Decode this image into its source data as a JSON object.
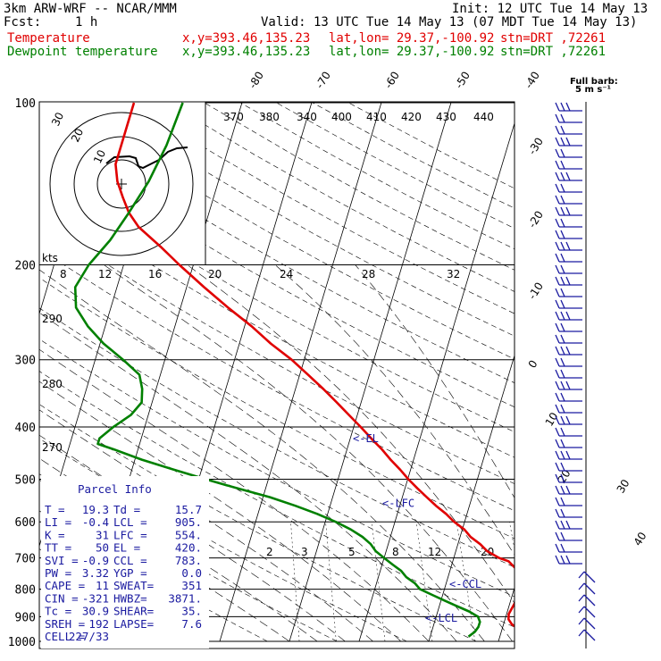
{
  "header": {
    "model": "3km ARW-WRF -- NCAR/MMM",
    "init": "Init: 12 UTC Tue 14 May 13",
    "fcst_label": "Fcst:",
    "fcst_value": "1 h",
    "valid": "Valid: 13 UTC Tue 14 May 13 (07 MDT Tue 14 May 13)",
    "temperature_label": "Temperature",
    "dewpoint_label": "Dewpoint temperature",
    "xy": "x,y=393.46,135.23",
    "latlon": "lat,lon= 29.37,-100.92",
    "stn": "stn=DRT ,72261"
  },
  "colors": {
    "temperature": "#e00000",
    "dewpoint": "#008000",
    "barbs": "#1a1aa0",
    "panel_text": "#1a1aa0",
    "axes": "#000000"
  },
  "wind_key": {
    "line1": "Full barb:",
    "line2": "5 m s⁻¹"
  },
  "hodograph": {
    "units": "kts",
    "ring_labels": [
      "10",
      "20",
      "30"
    ],
    "speed_axis": [
      "8",
      "12",
      "16",
      "20",
      "24",
      "28",
      "32"
    ]
  },
  "chart_data": {
    "type": "line",
    "chart_kind": "skew-T log-p sounding",
    "y_axis": "pressure (hPa)",
    "y_log_scale": true,
    "ylim": [
      1000,
      100
    ],
    "pressure_levels": [
      "100",
      "200",
      "300",
      "400",
      "500",
      "600",
      "700",
      "800",
      "900",
      "1000"
    ],
    "isotherm_labels": [
      "-80",
      "-70",
      "-60",
      "-50",
      "-40",
      "-30",
      "-20",
      "-10",
      "0",
      "10",
      "20",
      "30",
      "40"
    ],
    "theta_labels": [
      "370",
      "380",
      "340",
      "400",
      "410",
      "420",
      "430",
      "440"
    ],
    "theta_left_labels": [
      "290",
      "280",
      "270"
    ],
    "mixing_ratio_labels": [
      "2",
      "3",
      "5",
      "8",
      "12",
      "20"
    ],
    "series": [
      {
        "name": "Temperature",
        "color": "#e00000",
        "points": [
          [
            1000,
            24
          ],
          [
            980,
            23.5
          ],
          [
            950,
            22.5
          ],
          [
            930,
            21.2
          ],
          [
            910,
            20.5
          ],
          [
            890,
            20.3
          ],
          [
            870,
            20.5
          ],
          [
            850,
            20.7
          ],
          [
            830,
            20.8
          ],
          [
            810,
            20.5
          ],
          [
            790,
            20.8
          ],
          [
            770,
            21.0
          ],
          [
            750,
            20.3
          ],
          [
            730,
            19.2
          ],
          [
            710,
            18.0
          ],
          [
            700,
            16.5
          ],
          [
            680,
            14.5
          ],
          [
            660,
            13.2
          ],
          [
            640,
            11.5
          ],
          [
            620,
            10.3
          ],
          [
            600,
            8.5
          ],
          [
            580,
            7.0
          ],
          [
            560,
            5.2
          ],
          [
            540,
            3.5
          ],
          [
            520,
            1.8
          ],
          [
            500,
            0.1
          ],
          [
            480,
            -1.5
          ],
          [
            460,
            -3.3
          ],
          [
            440,
            -5.0
          ],
          [
            420,
            -7.0
          ],
          [
            400,
            -9.0
          ],
          [
            380,
            -11.2
          ],
          [
            360,
            -13.5
          ],
          [
            340,
            -16.0
          ],
          [
            320,
            -18.8
          ],
          [
            300,
            -21.8
          ],
          [
            280,
            -25.5
          ],
          [
            260,
            -29.0
          ],
          [
            240,
            -33.2
          ],
          [
            220,
            -37.5
          ],
          [
            200,
            -42.0
          ],
          [
            185,
            -45.5
          ],
          [
            170,
            -49.5
          ],
          [
            160,
            -51.5
          ],
          [
            150,
            -53.0
          ],
          [
            140,
            -54.5
          ],
          [
            130,
            -55.5
          ],
          [
            120,
            -55.5
          ],
          [
            110,
            -55.5
          ],
          [
            100,
            -55.5
          ]
        ]
      },
      {
        "name": "Dewpoint temperature",
        "color": "#008000",
        "points": [
          [
            980,
            15.5
          ],
          [
            960,
            16.2
          ],
          [
            940,
            16.5
          ],
          [
            920,
            16.5
          ],
          [
            900,
            16.0
          ],
          [
            880,
            14.5
          ],
          [
            860,
            12.5
          ],
          [
            840,
            10.5
          ],
          [
            820,
            8.5
          ],
          [
            800,
            6.5
          ],
          [
            780,
            5.5
          ],
          [
            760,
            4.0
          ],
          [
            740,
            3.0
          ],
          [
            720,
            1.5
          ],
          [
            700,
            0.0
          ],
          [
            680,
            -1.5
          ],
          [
            660,
            -2.5
          ],
          [
            640,
            -4.0
          ],
          [
            620,
            -6.0
          ],
          [
            600,
            -8.5
          ],
          [
            580,
            -11.5
          ],
          [
            560,
            -15.0
          ],
          [
            540,
            -19.0
          ],
          [
            520,
            -24.0
          ],
          [
            500,
            -29.0
          ],
          [
            480,
            -34.0
          ],
          [
            460,
            -39.0
          ],
          [
            440,
            -43.5
          ],
          [
            430,
            -46.0
          ],
          [
            420,
            -46.0
          ],
          [
            400,
            -44.5
          ],
          [
            380,
            -42.5
          ],
          [
            360,
            -41.5
          ],
          [
            340,
            -42.0
          ],
          [
            320,
            -43.0
          ],
          [
            300,
            -46.0
          ],
          [
            280,
            -49.5
          ],
          [
            260,
            -52.5
          ],
          [
            240,
            -55.0
          ],
          [
            220,
            -56.0
          ],
          [
            200,
            -55.0
          ],
          [
            180,
            -53.0
          ],
          [
            160,
            -51.5
          ],
          [
            140,
            -50.0
          ],
          [
            120,
            -49.0
          ],
          [
            100,
            -48.5
          ]
        ]
      }
    ],
    "annotations": [
      "EL",
      "LFC",
      "CCL",
      "LCL"
    ]
  },
  "indices": {
    "title": "Parcel Info",
    "rows": [
      [
        "T  =",
        "19.3",
        "Td =",
        "15.7"
      ],
      [
        "LI =",
        "-0.4",
        "LCL =",
        "905."
      ],
      [
        "K  =",
        "31",
        "LFC =",
        "554."
      ],
      [
        "TT =",
        "50",
        "EL  =",
        "420."
      ],
      [
        "SVI =",
        "-0.9",
        "CCL =",
        "783."
      ],
      [
        "PW =",
        "3.32",
        "YGP =",
        "0.0"
      ],
      [
        "CAPE =",
        "11",
        "SWEAT=",
        "351"
      ],
      [
        "CIN =",
        "-321",
        "HWBZ=",
        "3871."
      ],
      [
        "Tc =",
        "30.9",
        "SHEAR=",
        "35."
      ],
      [
        "SREH =",
        "192",
        "LAPSE=",
        "7.6"
      ],
      [
        "CELL =",
        "227/33",
        "",
        ""
      ]
    ]
  }
}
